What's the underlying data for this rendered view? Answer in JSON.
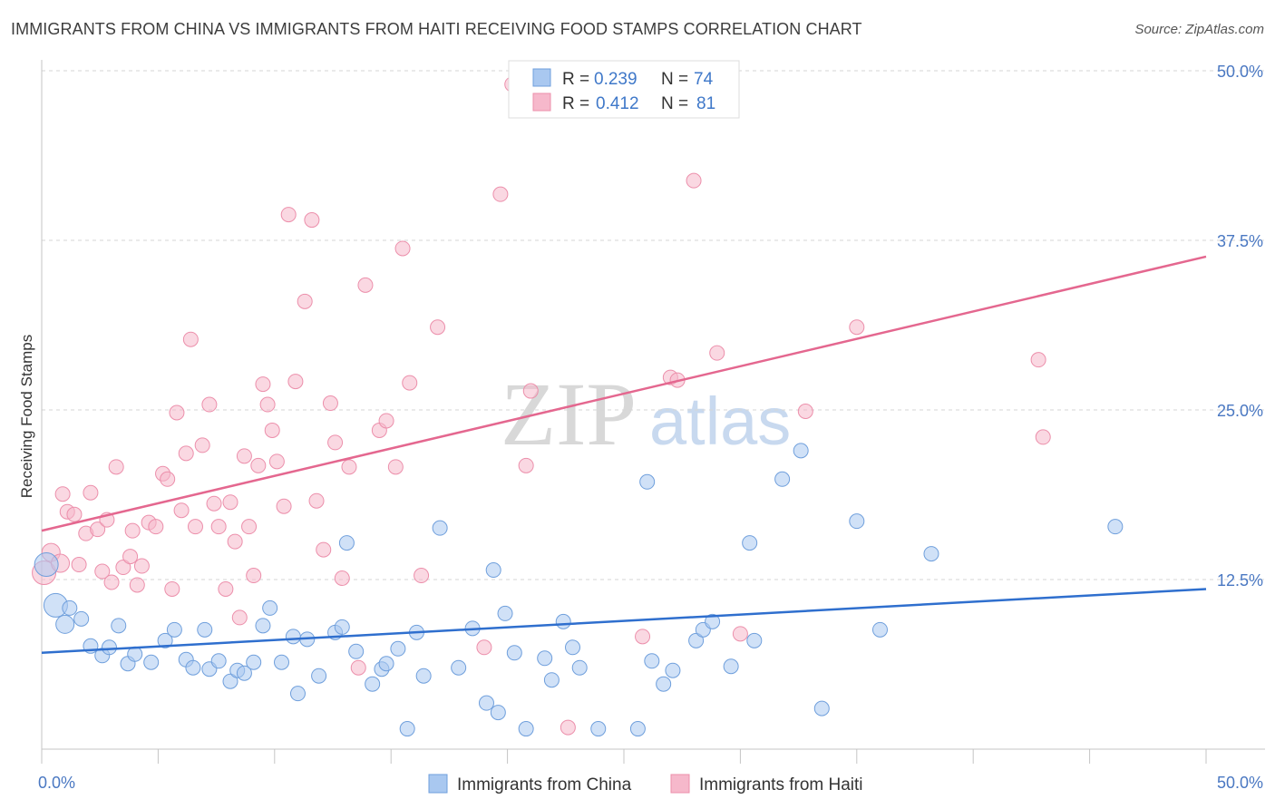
{
  "title": "IMMIGRANTS FROM CHINA VS IMMIGRANTS FROM HAITI RECEIVING FOOD STAMPS CORRELATION CHART",
  "source": "Source: ZipAtlas.com",
  "watermark": {
    "zip": "ZIP",
    "atlas": "atlas"
  },
  "legend": {
    "china": {
      "r_label": "R = ",
      "r_value": "0.239",
      "n_label": "N = ",
      "n_value": "74"
    },
    "haiti": {
      "r_label": "R = ",
      "r_value": "0.412",
      "n_label": "N = ",
      "n_value": "81"
    }
  },
  "bottom_legend": {
    "china": "Immigrants from China",
    "haiti": "Immigrants from Haiti"
  },
  "colors": {
    "china_fill": "#a9c8f0",
    "china_stroke": "#6f9fdc",
    "china_line": "#2f6fce",
    "haiti_fill": "#f6b8cb",
    "haiti_stroke": "#ec8fab",
    "haiti_line": "#e4678f",
    "tick_text": "#4a78c2",
    "grid": "#d6d6d6"
  },
  "chart_data": {
    "type": "scatter",
    "title": "IMMIGRANTS FROM CHINA VS IMMIGRANTS FROM HAITI RECEIVING FOOD STAMPS CORRELATION CHART",
    "xlabel": "",
    "ylabel": "Receiving Food Stamps",
    "xlim": [
      0,
      50
    ],
    "ylim": [
      0,
      50
    ],
    "x_tick_labels": [
      "0.0%",
      "50.0%"
    ],
    "y_ticks": [
      12.5,
      25.0,
      37.5,
      50.0
    ],
    "y_tick_labels": [
      "12.5%",
      "25.0%",
      "37.5%",
      "50.0%"
    ],
    "grid": "horizontal dashed",
    "legend_position": "top-center",
    "series": [
      {
        "name": "Immigrants from China",
        "r": 0.239,
        "n": 74,
        "trend": [
          [
            0,
            7.1
          ],
          [
            50,
            11.8
          ]
        ],
        "points": [
          [
            0.2,
            13.6,
            2
          ],
          [
            0.6,
            10.6,
            2
          ],
          [
            1,
            9.2,
            1.5
          ],
          [
            1.2,
            10.4,
            1
          ],
          [
            1.7,
            9.6,
            1
          ],
          [
            2.1,
            7.6,
            1
          ],
          [
            2.6,
            6.9,
            1
          ],
          [
            2.9,
            7.5,
            1
          ],
          [
            3.3,
            9.1,
            1
          ],
          [
            3.7,
            6.3,
            1
          ],
          [
            4.0,
            7.0,
            1
          ],
          [
            4.7,
            6.4,
            1
          ],
          [
            5.3,
            8.0,
            1
          ],
          [
            5.7,
            8.8,
            1
          ],
          [
            6.2,
            6.6,
            1
          ],
          [
            6.5,
            6.0,
            1
          ],
          [
            7.0,
            8.8,
            1
          ],
          [
            7.2,
            5.9,
            1
          ],
          [
            7.6,
            6.5,
            1
          ],
          [
            8.1,
            5.0,
            1
          ],
          [
            8.4,
            5.8,
            1
          ],
          [
            8.7,
            5.6,
            1
          ],
          [
            9.1,
            6.4,
            1
          ],
          [
            9.5,
            9.1,
            1
          ],
          [
            9.8,
            10.4,
            1
          ],
          [
            10.3,
            6.4,
            1
          ],
          [
            10.8,
            8.3,
            1
          ],
          [
            11.0,
            4.1,
            1
          ],
          [
            11.4,
            8.1,
            1
          ],
          [
            11.9,
            5.4,
            1
          ],
          [
            12.6,
            8.6,
            1
          ],
          [
            12.9,
            9.0,
            1
          ],
          [
            13.1,
            15.2,
            1
          ],
          [
            13.5,
            7.2,
            1
          ],
          [
            14.2,
            4.8,
            1
          ],
          [
            14.6,
            5.9,
            1
          ],
          [
            14.8,
            6.3,
            1
          ],
          [
            15.3,
            7.4,
            1
          ],
          [
            15.7,
            1.5,
            1
          ],
          [
            16.1,
            8.6,
            1
          ],
          [
            16.4,
            5.4,
            1
          ],
          [
            17.1,
            16.3,
            1
          ],
          [
            17.9,
            6.0,
            1
          ],
          [
            18.5,
            8.9,
            1
          ],
          [
            19.1,
            3.4,
            1
          ],
          [
            19.4,
            13.2,
            1
          ],
          [
            19.6,
            2.7,
            1
          ],
          [
            19.9,
            10.0,
            1
          ],
          [
            20.3,
            7.1,
            1
          ],
          [
            20.8,
            1.5,
            1
          ],
          [
            21.6,
            6.7,
            1
          ],
          [
            21.9,
            5.1,
            1
          ],
          [
            22.4,
            9.4,
            1
          ],
          [
            22.8,
            7.5,
            1
          ],
          [
            23.1,
            6.0,
            1
          ],
          [
            23.9,
            1.5,
            1
          ],
          [
            25.6,
            1.5,
            1
          ],
          [
            26.0,
            19.7,
            1
          ],
          [
            26.2,
            6.5,
            1
          ],
          [
            26.7,
            4.8,
            1
          ],
          [
            27.1,
            5.8,
            1
          ],
          [
            28.1,
            8.0,
            1
          ],
          [
            28.4,
            8.8,
            1
          ],
          [
            28.8,
            9.4,
            1
          ],
          [
            29.6,
            6.1,
            1
          ],
          [
            30.4,
            15.2,
            1
          ],
          [
            30.6,
            8.0,
            1
          ],
          [
            31.8,
            19.9,
            1
          ],
          [
            32.6,
            22.0,
            1
          ],
          [
            33.5,
            3.0,
            1
          ],
          [
            35.0,
            16.8,
            1
          ],
          [
            36.0,
            8.8,
            1
          ],
          [
            38.2,
            14.4,
            1
          ],
          [
            46.1,
            16.4,
            1
          ]
        ]
      },
      {
        "name": "Immigrants from Haiti",
        "r": 0.412,
        "n": 81,
        "trend": [
          [
            0,
            16.1
          ],
          [
            50,
            36.3
          ]
        ],
        "points": [
          [
            0.1,
            13.0,
            2
          ],
          [
            0.4,
            14.5,
            1.5
          ],
          [
            0.8,
            13.7,
            1.5
          ],
          [
            0.9,
            18.8,
            1
          ],
          [
            1.1,
            17.5,
            1
          ],
          [
            1.4,
            17.3,
            1
          ],
          [
            1.6,
            13.6,
            1
          ],
          [
            1.9,
            15.9,
            1
          ],
          [
            2.1,
            18.9,
            1
          ],
          [
            2.4,
            16.2,
            1
          ],
          [
            2.6,
            13.1,
            1
          ],
          [
            2.8,
            16.9,
            1
          ],
          [
            3.0,
            12.3,
            1
          ],
          [
            3.2,
            20.8,
            1
          ],
          [
            3.5,
            13.4,
            1
          ],
          [
            3.8,
            14.2,
            1
          ],
          [
            3.9,
            16.1,
            1
          ],
          [
            4.1,
            12.1,
            1
          ],
          [
            4.3,
            13.5,
            1
          ],
          [
            4.6,
            16.7,
            1
          ],
          [
            4.9,
            16.4,
            1
          ],
          [
            5.2,
            20.3,
            1
          ],
          [
            5.4,
            19.9,
            1
          ],
          [
            5.6,
            11.8,
            1
          ],
          [
            5.8,
            24.8,
            1
          ],
          [
            6.0,
            17.6,
            1
          ],
          [
            6.2,
            21.8,
            1
          ],
          [
            6.4,
            30.2,
            1
          ],
          [
            6.6,
            16.4,
            1
          ],
          [
            6.9,
            22.4,
            1
          ],
          [
            7.2,
            25.4,
            1
          ],
          [
            7.4,
            18.1,
            1
          ],
          [
            7.6,
            16.4,
            1
          ],
          [
            7.9,
            11.8,
            1
          ],
          [
            8.1,
            18.2,
            1
          ],
          [
            8.3,
            15.3,
            1
          ],
          [
            8.5,
            9.7,
            1
          ],
          [
            8.7,
            21.6,
            1
          ],
          [
            8.9,
            16.4,
            1
          ],
          [
            9.1,
            12.8,
            1
          ],
          [
            9.3,
            20.9,
            1
          ],
          [
            9.5,
            26.9,
            1
          ],
          [
            9.7,
            25.4,
            1
          ],
          [
            9.9,
            23.5,
            1
          ],
          [
            10.1,
            21.2,
            1
          ],
          [
            10.4,
            17.9,
            1
          ],
          [
            10.6,
            39.4,
            1
          ],
          [
            10.9,
            27.1,
            1
          ],
          [
            11.3,
            33.0,
            1
          ],
          [
            11.6,
            39.0,
            1
          ],
          [
            11.8,
            18.3,
            1
          ],
          [
            12.1,
            14.7,
            1
          ],
          [
            12.4,
            25.5,
            1
          ],
          [
            12.6,
            22.6,
            1
          ],
          [
            12.9,
            12.6,
            1
          ],
          [
            13.2,
            20.8,
            1
          ],
          [
            13.6,
            6.0,
            1
          ],
          [
            13.9,
            34.2,
            1
          ],
          [
            14.5,
            23.5,
            1
          ],
          [
            14.8,
            24.2,
            1
          ],
          [
            15.2,
            20.8,
            1
          ],
          [
            15.5,
            36.9,
            1
          ],
          [
            15.8,
            27.0,
            1
          ],
          [
            16.3,
            12.8,
            1
          ],
          [
            17.0,
            31.1,
            1
          ],
          [
            19.0,
            7.5,
            1
          ],
          [
            19.7,
            40.9,
            1
          ],
          [
            20.2,
            49.0,
            1
          ],
          [
            20.8,
            20.9,
            1
          ],
          [
            21.0,
            26.4,
            1
          ],
          [
            22.6,
            1.6,
            1
          ],
          [
            25.8,
            8.3,
            1
          ],
          [
            27.0,
            27.4,
            1
          ],
          [
            27.3,
            27.2,
            1
          ],
          [
            28.0,
            41.9,
            1
          ],
          [
            29.0,
            29.2,
            1
          ],
          [
            30.0,
            8.5,
            1
          ],
          [
            32.8,
            24.9,
            1
          ],
          [
            35.0,
            31.1,
            1
          ],
          [
            42.8,
            28.7,
            1
          ],
          [
            43.0,
            23.0,
            1
          ]
        ]
      }
    ]
  }
}
